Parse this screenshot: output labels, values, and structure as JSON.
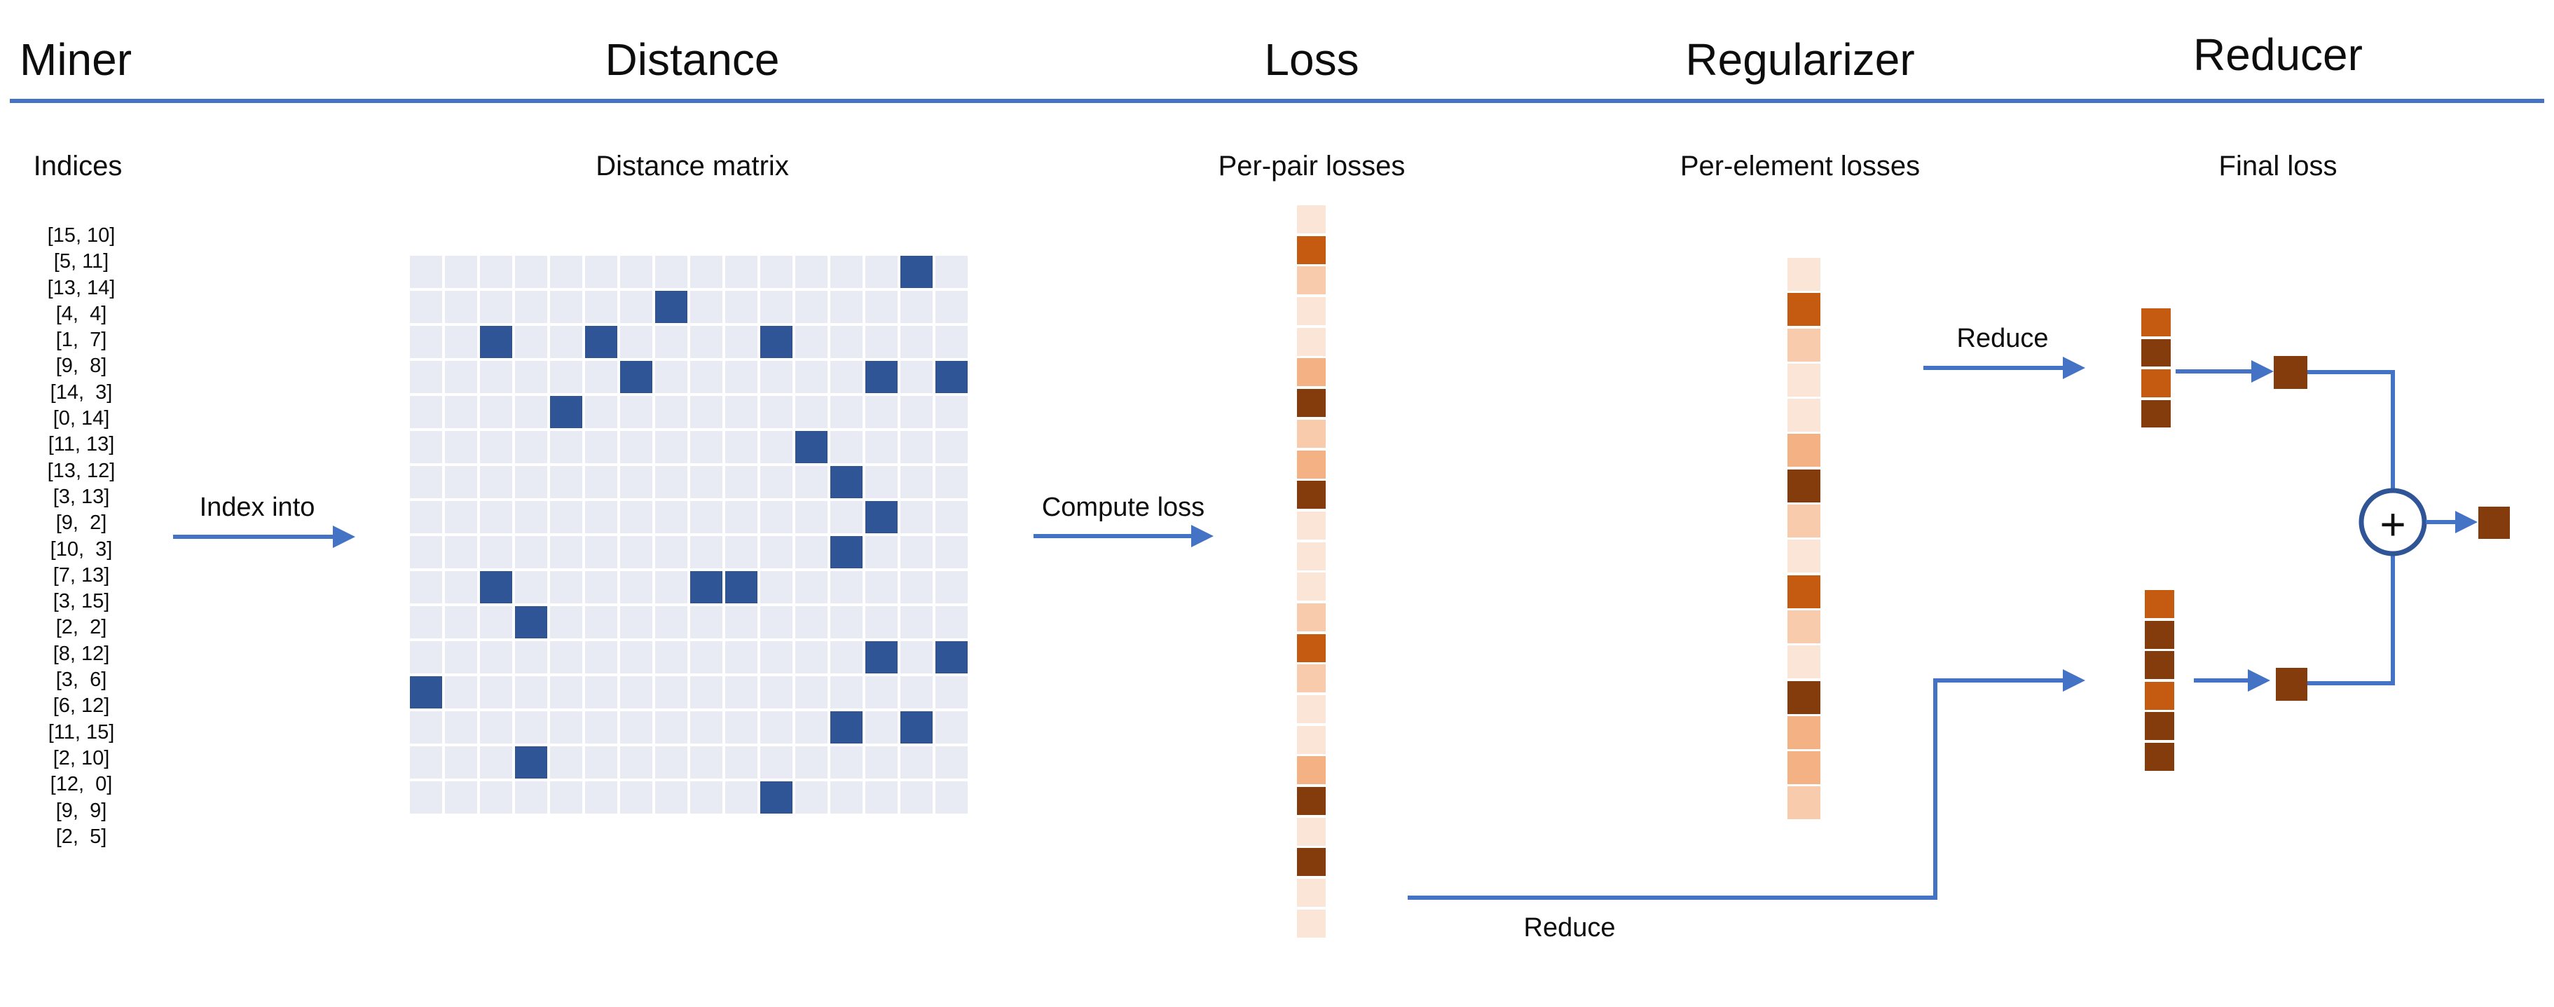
{
  "palette": {
    "blue_accent": "#4472C4",
    "matrix_highlight": "#2F5597",
    "matrix_cell": "#E9EBF4",
    "light": "#FBE5D6",
    "light2": "#F8CBAD",
    "medium": "#F4B183",
    "dark_orange": "#C55A11",
    "dark_brown": "#843C0C",
    "text": "#0D0D0D"
  },
  "columns": [
    {
      "title": "Miner",
      "subtitle": "Indices"
    },
    {
      "title": "Distance",
      "subtitle": "Distance matrix"
    },
    {
      "title": "Loss",
      "subtitle": "Per-pair losses"
    },
    {
      "title": "Regularizer",
      "subtitle": "Per-element losses"
    },
    {
      "title": "Reducer",
      "subtitle": "Final loss"
    }
  ],
  "miner": {
    "indices": [
      "[15, 10]",
      "[5, 11]",
      "[13, 14]",
      "[4,  4]",
      "[1,  7]",
      "[9,  8]",
      "[14,  3]",
      "[0, 14]",
      "[11, 13]",
      "[13, 12]",
      "[3, 13]",
      "[9,  2]",
      "[10,  3]",
      "[7, 13]",
      "[3, 15]",
      "[2,  2]",
      "[8, 12]",
      "[3,  6]",
      "[6, 12]",
      "[11, 15]",
      "[2, 10]",
      "[12,  0]",
      "[9,  9]",
      "[2,  5]"
    ]
  },
  "distance": {
    "matrix_size": 16,
    "highlighted_cells": [
      [
        15,
        10
      ],
      [
        5,
        11
      ],
      [
        13,
        14
      ],
      [
        4,
        4
      ],
      [
        1,
        7
      ],
      [
        9,
        8
      ],
      [
        14,
        3
      ],
      [
        0,
        14
      ],
      [
        11,
        13
      ],
      [
        13,
        12
      ],
      [
        3,
        13
      ],
      [
        9,
        2
      ],
      [
        10,
        3
      ],
      [
        7,
        13
      ],
      [
        3,
        15
      ],
      [
        2,
        2
      ],
      [
        8,
        12
      ],
      [
        3,
        6
      ],
      [
        6,
        12
      ],
      [
        11,
        15
      ],
      [
        2,
        10
      ],
      [
        12,
        0
      ],
      [
        9,
        9
      ],
      [
        2,
        5
      ]
    ]
  },
  "loss": {
    "per_pair_losses": [
      "light",
      "dark_orange",
      "light2",
      "light",
      "light",
      "medium",
      "dark_brown",
      "light2",
      "medium",
      "dark_brown",
      "light",
      "light",
      "light",
      "light2",
      "dark_orange",
      "light2",
      "light",
      "light",
      "medium",
      "dark_brown",
      "light",
      "dark_brown",
      "light",
      "light"
    ]
  },
  "regularizer": {
    "per_element_losses": [
      "light",
      "dark_orange",
      "light2",
      "light",
      "light",
      "medium",
      "dark_brown",
      "light2",
      "light",
      "dark_orange",
      "light2",
      "light",
      "dark_brown",
      "medium",
      "medium",
      "light2"
    ]
  },
  "reducer": {
    "top_strip": [
      "dark_orange",
      "dark_brown",
      "dark_orange",
      "dark_brown"
    ],
    "bottom_strip": [
      "dark_orange",
      "dark_brown",
      "dark_brown",
      "dark_orange",
      "dark_brown",
      "dark_brown"
    ],
    "top_reduced": "dark_brown",
    "bottom_reduced": "dark_brown",
    "final_loss": "dark_brown",
    "plus_symbol": "+"
  },
  "arrow_labels": {
    "index_into": "Index into",
    "compute_loss": "Compute loss",
    "reduce_top": "Reduce",
    "reduce_bottom": "Reduce"
  }
}
